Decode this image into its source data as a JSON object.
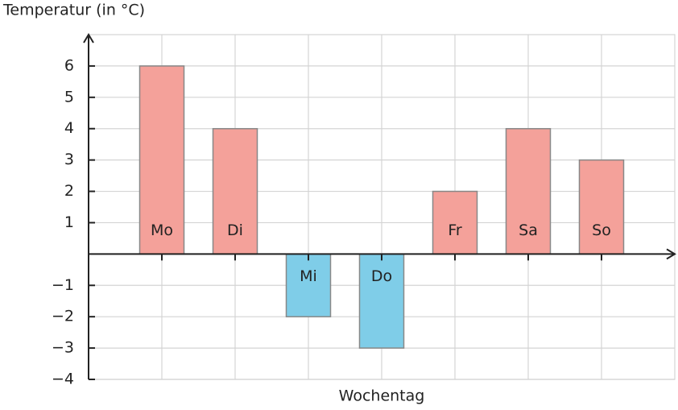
{
  "chart_data": {
    "type": "bar",
    "title": "Temperatur (in °C)",
    "x_label": "Wochentag",
    "categories": [
      "Mo",
      "Di",
      "Mi",
      "Do",
      "Fr",
      "Sa",
      "So"
    ],
    "values": [
      6,
      4,
      -2,
      -3,
      2,
      4,
      3
    ],
    "positive_color": "#f4a19a",
    "negative_color": "#7fcde8",
    "ylim": [
      -4,
      7
    ],
    "yticks": [
      {
        "value": -4,
        "label": "−4"
      },
      {
        "value": -3,
        "label": "−3"
      },
      {
        "value": -2,
        "label": "−2"
      },
      {
        "value": -1,
        "label": "−1"
      },
      1,
      2,
      3,
      4,
      5,
      6
    ],
    "grid": true
  }
}
